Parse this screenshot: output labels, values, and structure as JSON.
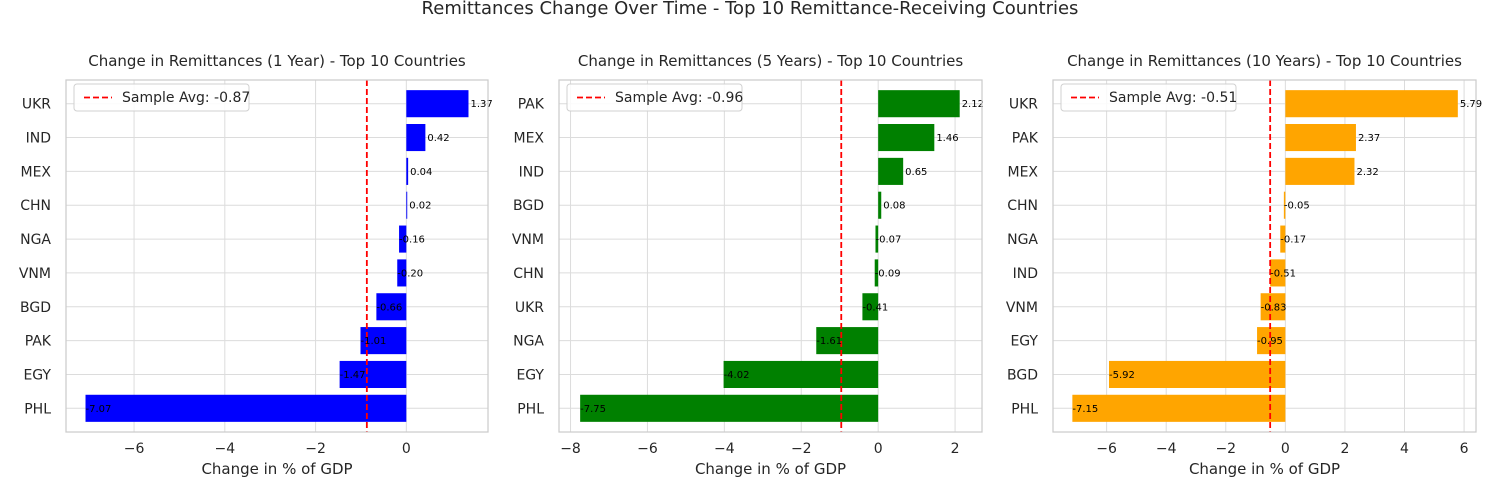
{
  "figure": {
    "title": "Remittances Change Over Time - Top 10 Remittance-Receiving Countries"
  },
  "chart_data": [
    {
      "type": "bar",
      "orientation": "horizontal",
      "title": "Change in Remittances (1 Year) - Top 10 Countries",
      "xlabel": "Change in % of GDP",
      "ylabel": "",
      "color": "#0000ff",
      "categories": [
        "UKR",
        "IND",
        "MEX",
        "CHN",
        "NGA",
        "VNM",
        "BGD",
        "PAK",
        "EGY",
        "PHL"
      ],
      "values": [
        1.37,
        0.42,
        0.04,
        0.02,
        -0.16,
        -0.2,
        -0.66,
        -1.01,
        -1.47,
        -7.07
      ],
      "value_labels": [
        "1.37",
        "0.42",
        "0.04",
        "0.02",
        "-0.16",
        "-0.20",
        "-0.66",
        "-1.01",
        "-1.47",
        "-7.07"
      ],
      "xlim": [
        -7.5,
        1.8
      ],
      "xticks": [
        -6,
        -4,
        -2,
        0
      ],
      "xtick_labels": [
        "−6",
        "−4",
        "−2",
        "0"
      ],
      "average": -0.87,
      "average_color": "#ff0000",
      "legend_label": "Sample Avg: -0.87",
      "legend_position": "upper-left",
      "grid": true
    },
    {
      "type": "bar",
      "orientation": "horizontal",
      "title": "Change in Remittances (5 Years) - Top 10 Countries",
      "xlabel": "Change in % of GDP",
      "ylabel": "",
      "color": "#008000",
      "categories": [
        "PAK",
        "MEX",
        "IND",
        "BGD",
        "VNM",
        "CHN",
        "UKR",
        "NGA",
        "EGY",
        "PHL"
      ],
      "values": [
        2.12,
        1.46,
        0.65,
        0.08,
        -0.07,
        -0.09,
        -0.41,
        -1.61,
        -4.02,
        -7.75
      ],
      "value_labels": [
        "2.12",
        "1.46",
        "0.65",
        "0.08",
        "-0.07",
        "-0.09",
        "-0.41",
        "-1.61",
        "-4.02",
        "-7.75"
      ],
      "xlim": [
        -8.3,
        2.7
      ],
      "xticks": [
        -8,
        -6,
        -4,
        -2,
        0,
        2
      ],
      "xtick_labels": [
        "−8",
        "−6",
        "−4",
        "−2",
        "0",
        "2"
      ],
      "average": -0.96,
      "average_color": "#ff0000",
      "legend_label": "Sample Avg: -0.96",
      "legend_position": "upper-left",
      "grid": true
    },
    {
      "type": "bar",
      "orientation": "horizontal",
      "title": "Change in Remittances (10 Years) - Top 10 Countries",
      "xlabel": "Change in % of GDP",
      "ylabel": "",
      "color": "#ffa500",
      "categories": [
        "UKR",
        "PAK",
        "MEX",
        "CHN",
        "NGA",
        "IND",
        "VNM",
        "EGY",
        "BGD",
        "PHL"
      ],
      "values": [
        5.79,
        2.37,
        2.32,
        -0.05,
        -0.17,
        -0.51,
        -0.83,
        -0.95,
        -5.92,
        -7.15
      ],
      "value_labels": [
        "5.79",
        "2.37",
        "2.32",
        "-0.05",
        "-0.17",
        "-0.51",
        "-0.83",
        "-0.95",
        "-5.92",
        "-7.15"
      ],
      "xlim": [
        -7.8,
        6.4
      ],
      "xticks": [
        -6,
        -4,
        -2,
        0,
        2,
        4,
        6
      ],
      "xtick_labels": [
        "−6",
        "−4",
        "−2",
        "0",
        "2",
        "4",
        "6"
      ],
      "average": -0.51,
      "average_color": "#ff0000",
      "legend_label": "Sample Avg: -0.51",
      "legend_position": "upper-left",
      "grid": true
    }
  ]
}
